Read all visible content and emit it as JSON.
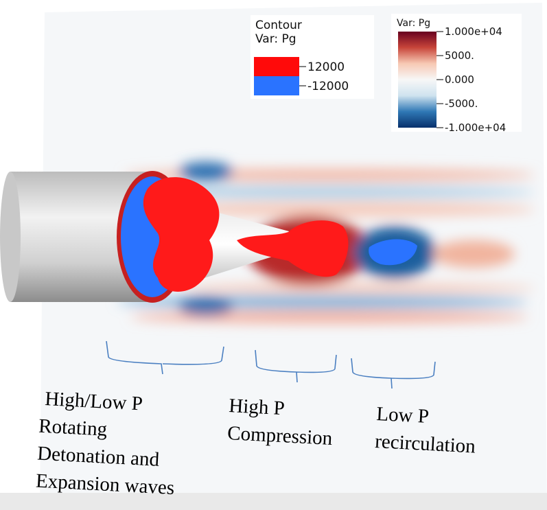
{
  "contour_legend": {
    "title": [
      "Contour",
      "Var: Pg"
    ],
    "levels": [
      {
        "value": 12000,
        "color": "#ff0a0a"
      },
      {
        "value": -12000,
        "color": "#2a73ff"
      }
    ]
  },
  "colorbar": {
    "title": "Var: Pg",
    "range": [
      -10000,
      10000
    ],
    "colors": [
      "#08306b",
      "#2f78b5",
      "#cfe3ef",
      "#f7f7f7",
      "#f7c9b4",
      "#c8453a",
      "#67001f"
    ],
    "ticks": [
      {
        "value": 10000,
        "label": "1.000e+04"
      },
      {
        "value": 5000,
        "label": "5000."
      },
      {
        "value": 0,
        "label": "0.000"
      },
      {
        "value": -5000,
        "label": "-5000."
      },
      {
        "value": -10000,
        "label": "-1.000e+04"
      }
    ]
  },
  "annotations": [
    {
      "lines": [
        "High/Low P",
        "Rotating",
        "Detonation and",
        "Expansion waves"
      ]
    },
    {
      "lines": [
        "High P",
        "Compression"
      ]
    },
    {
      "lines": [
        "Low P",
        "recirculation"
      ]
    }
  ]
}
